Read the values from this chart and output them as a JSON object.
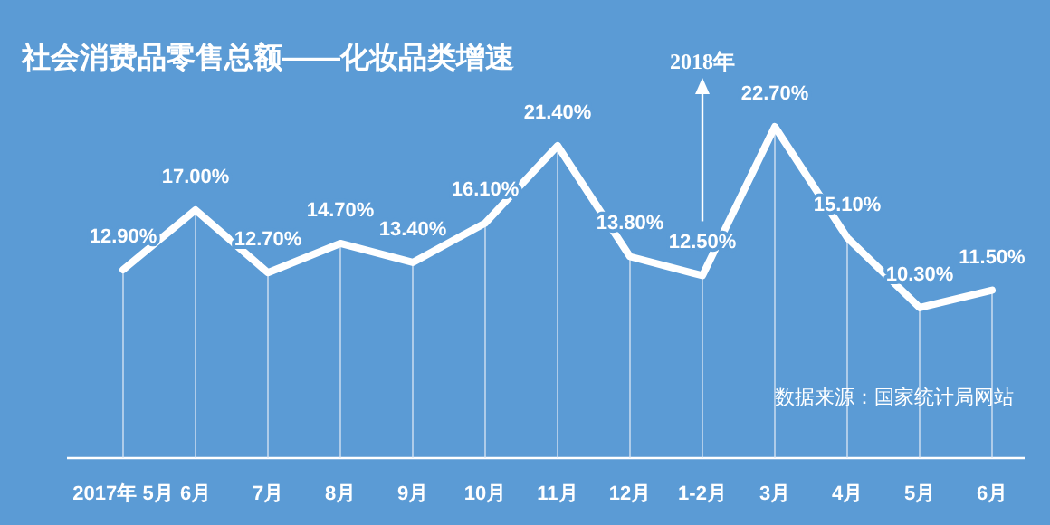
{
  "chart_data": {
    "type": "line",
    "title": "社会消费品零售总额——化妆品类增速",
    "categories": [
      "2017年 5月",
      "6月",
      "7月",
      "8月",
      "9月",
      "10月",
      "11月",
      "12月",
      "1-2月",
      "3月",
      "4月",
      "5月",
      "6月"
    ],
    "series": [
      {
        "color": "#ffffff",
        "values": [
          12.9,
          17.0,
          12.7,
          14.7,
          13.4,
          16.1,
          21.4,
          13.8,
          12.5,
          22.7,
          15.1,
          10.3,
          11.5
        ],
        "value_labels": [
          "12.90%",
          "17.00%",
          "12.70%",
          "14.70%",
          "13.40%",
          "16.10%",
          "21.40%",
          "13.80%",
          "12.50%",
          "22.70%",
          "15.10%",
          "10.30%",
          "11.50%"
        ]
      }
    ],
    "annotations": [
      {
        "text": "2018年",
        "x": "1-2月"
      },
      "数据来源：国家统计局网站"
    ],
    "grid": "x",
    "marker": "none",
    "line_style": "solid"
  }
}
